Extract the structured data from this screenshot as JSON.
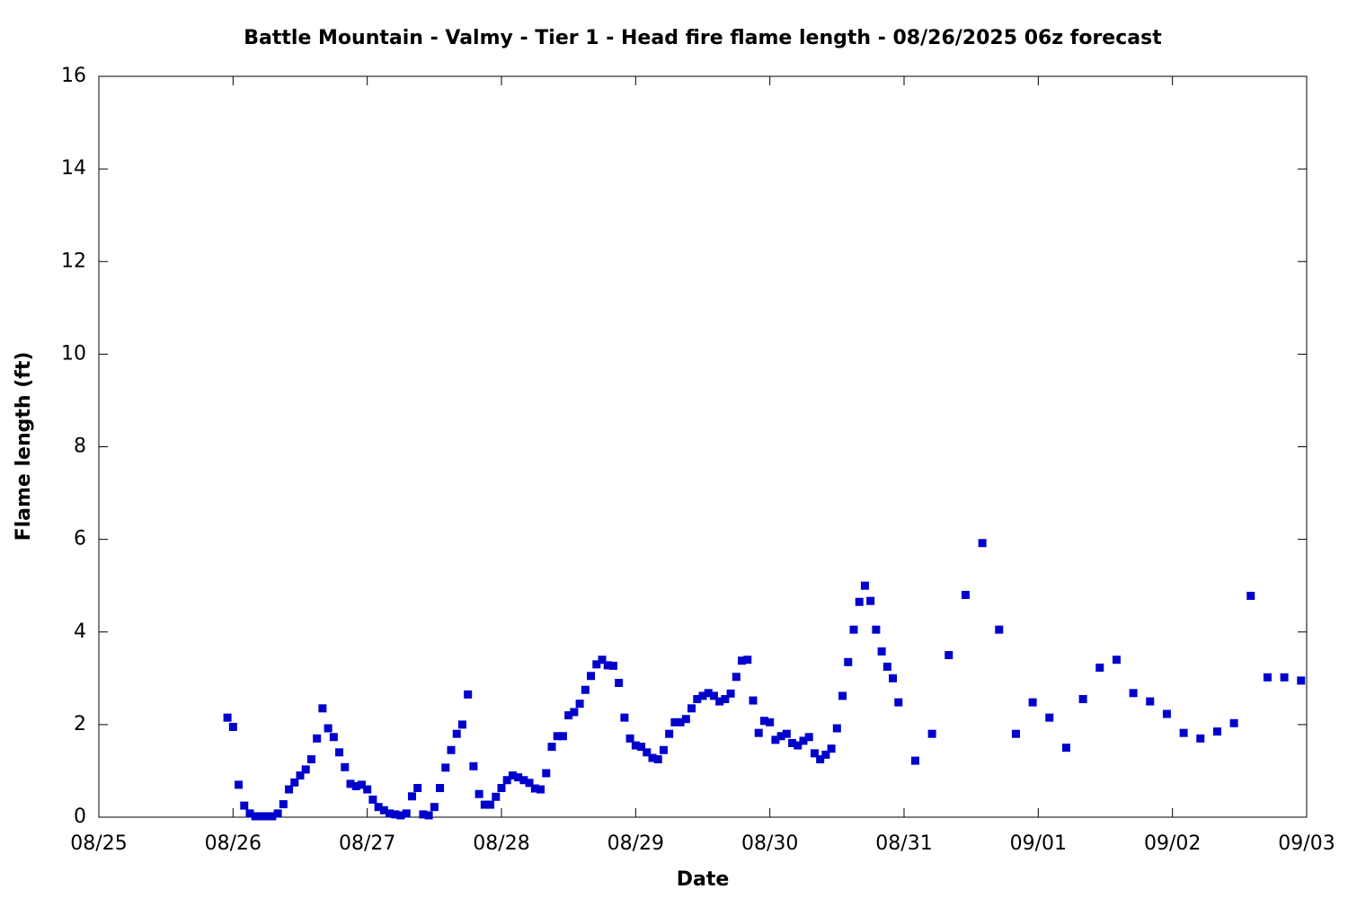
{
  "chart_data": {
    "type": "scatter",
    "title": "Battle Mountain - Valmy - Tier 1 - Head fire flame length - 08/26/2025 06z forecast",
    "x_label": "Date",
    "y_label": "Flame length (ft)",
    "xlim": [
      0,
      216
    ],
    "xticks": [
      {
        "value": 0,
        "label": "08/25"
      },
      {
        "value": 24,
        "label": "08/26"
      },
      {
        "value": 48,
        "label": "08/27"
      },
      {
        "value": 72,
        "label": "08/28"
      },
      {
        "value": 96,
        "label": "08/29"
      },
      {
        "value": 120,
        "label": "08/30"
      },
      {
        "value": 144,
        "label": "08/31"
      },
      {
        "value": 168,
        "label": "09/01"
      },
      {
        "value": 192,
        "label": "09/02"
      },
      {
        "value": 216,
        "label": "09/03"
      }
    ],
    "ylim": [
      0,
      16
    ],
    "yticks": [
      0,
      2,
      4,
      6,
      8,
      10,
      12,
      14,
      16
    ],
    "color": "#0000cc",
    "x": [
      23,
      24,
      25,
      26,
      27,
      28,
      29,
      30,
      31,
      32,
      33,
      34,
      35,
      36,
      37,
      38,
      39,
      40,
      41,
      42,
      43,
      44,
      45,
      46,
      47,
      48,
      49,
      50,
      51,
      52,
      53,
      54,
      55,
      56,
      57,
      58,
      59,
      60,
      61,
      62,
      63,
      64,
      65,
      66,
      67,
      68,
      69,
      70,
      71,
      72,
      73,
      74,
      75,
      76,
      77,
      78,
      79,
      80,
      81,
      82,
      83,
      84,
      85,
      86,
      87,
      88,
      89,
      90,
      91,
      92,
      93,
      94,
      95,
      96,
      97,
      98,
      99,
      100,
      101,
      102,
      103,
      104,
      105,
      106,
      107,
      108,
      109,
      110,
      111,
      112,
      113,
      114,
      115,
      116,
      117,
      118,
      119,
      120,
      121,
      122,
      123,
      124,
      125,
      126,
      127,
      128,
      129,
      130,
      131,
      132,
      133,
      134,
      135,
      136,
      137,
      138,
      139,
      140,
      141,
      142,
      143,
      146,
      149,
      152,
      155,
      158,
      161,
      164,
      167,
      170,
      173,
      176,
      179,
      182,
      185,
      188,
      191,
      194,
      197,
      200,
      203,
      206,
      209,
      212,
      215
    ],
    "values": [
      2.15,
      1.95,
      0.7,
      0.25,
      0.08,
      0.02,
      0.02,
      0.02,
      0.02,
      0.08,
      0.28,
      0.6,
      0.75,
      0.9,
      1.03,
      1.25,
      1.7,
      2.35,
      1.92,
      1.73,
      1.4,
      1.08,
      0.72,
      0.67,
      0.7,
      0.6,
      0.38,
      0.22,
      0.15,
      0.08,
      0.06,
      0.04,
      0.08,
      0.45,
      0.63,
      0.06,
      0.04,
      0.22,
      0.63,
      1.07,
      1.45,
      1.8,
      2.0,
      2.65,
      1.1,
      0.5,
      0.27,
      0.27,
      0.44,
      0.63,
      0.8,
      0.9,
      0.86,
      0.8,
      0.74,
      0.62,
      0.6,
      0.95,
      1.52,
      1.75,
      1.75,
      2.2,
      2.27,
      2.45,
      2.75,
      3.05,
      3.3,
      3.4,
      3.28,
      3.27,
      2.9,
      2.15,
      1.7,
      1.55,
      1.52,
      1.4,
      1.28,
      1.25,
      1.45,
      1.8,
      2.05,
      2.05,
      2.12,
      2.35,
      2.55,
      2.62,
      2.68,
      2.62,
      2.5,
      2.55,
      2.67,
      3.03,
      3.38,
      3.4,
      2.52,
      1.82,
      2.08,
      2.05,
      1.67,
      1.75,
      1.8,
      1.6,
      1.55,
      1.65,
      1.73,
      1.38,
      1.25,
      1.35,
      1.48,
      1.92,
      2.62,
      3.35,
      4.05,
      4.65,
      5.0,
      4.67,
      4.05,
      3.58,
      3.25,
      3.0,
      2.48,
      1.22,
      1.8,
      3.5,
      4.8,
      5.92,
      4.05,
      1.8,
      2.48,
      2.15,
      1.5,
      2.55,
      3.23,
      3.4,
      2.68,
      2.5,
      2.23,
      1.82,
      1.7,
      1.85,
      2.03,
      4.78,
      3.02,
      3.02,
      2.95
    ]
  }
}
